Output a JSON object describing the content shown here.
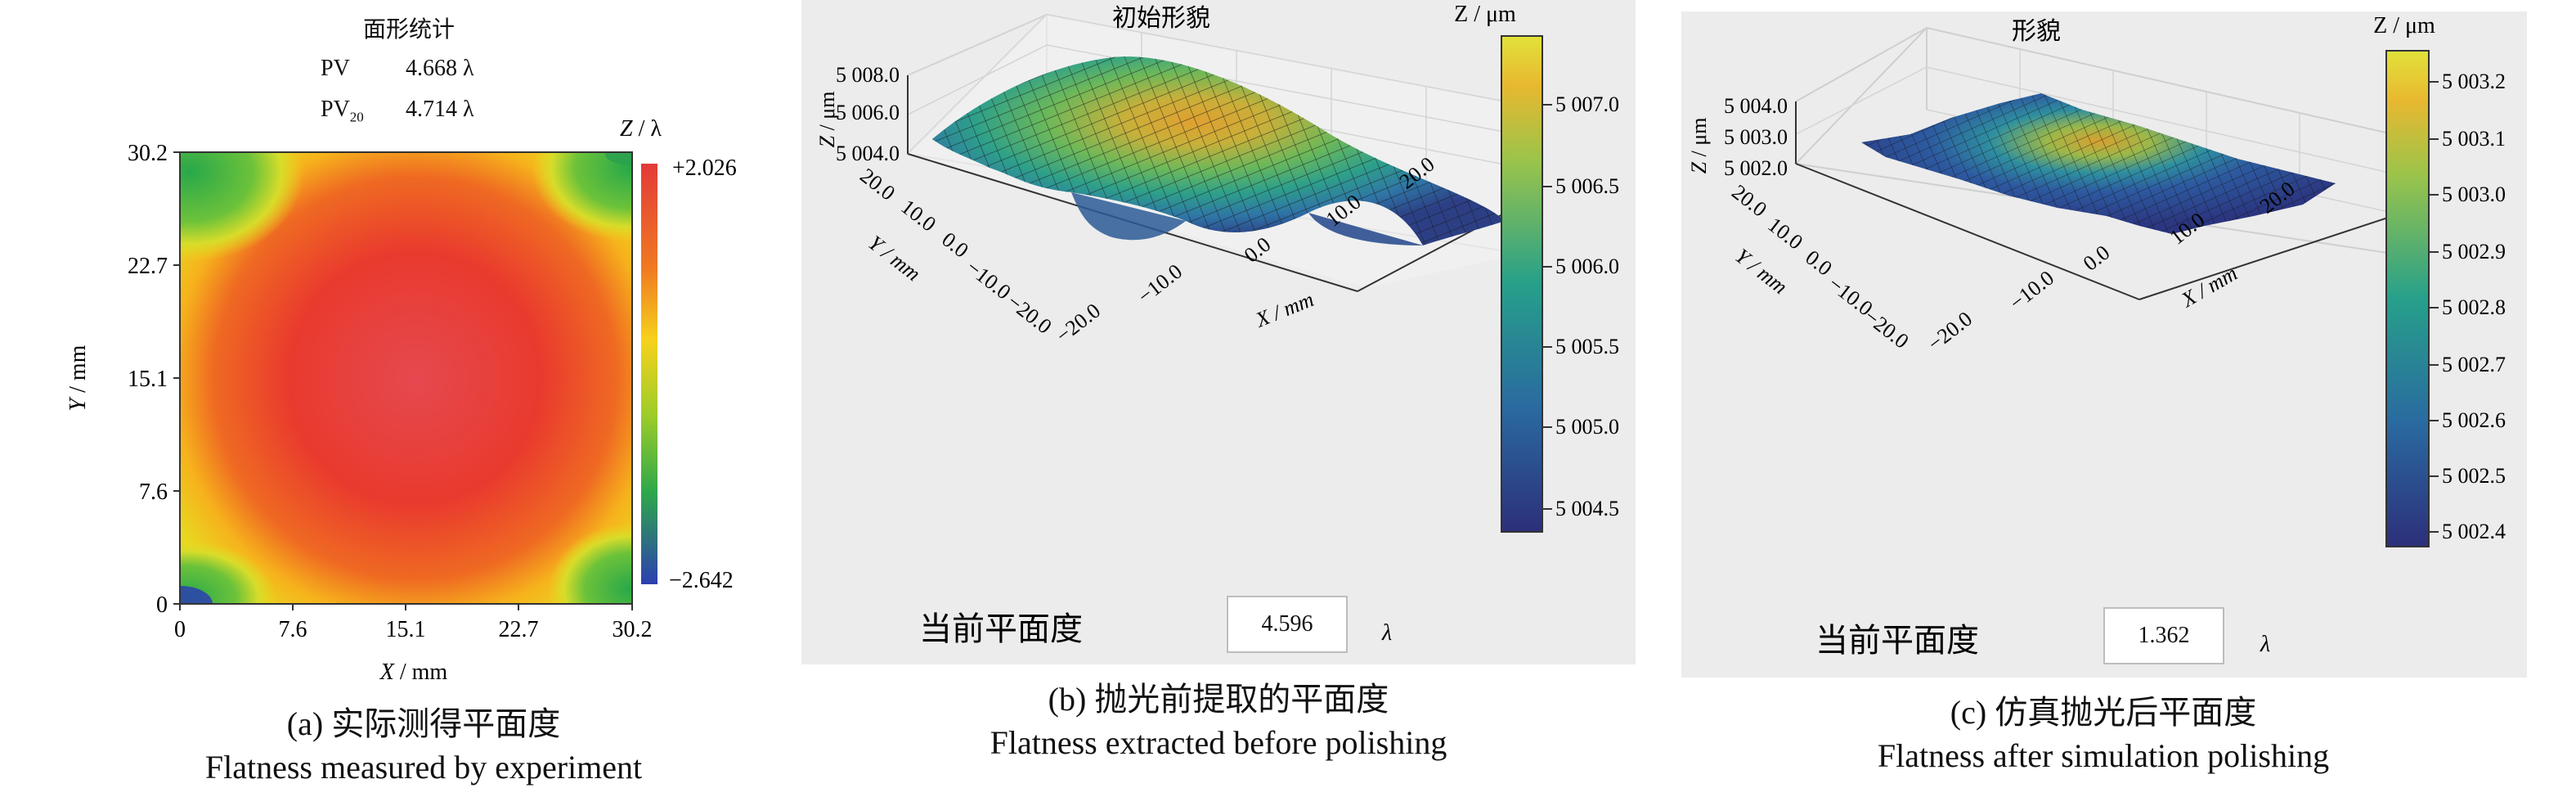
{
  "panel_a": {
    "stats_title": "面形统计",
    "pv_label": "PV",
    "pv_value": "4.668 λ",
    "pv20_label": "PV",
    "pv20_sub": "20",
    "pv20_value": "4.714 λ",
    "xlabel_var": "X",
    "xlabel_unit": " / mm",
    "ylabel_var": "Y",
    "ylabel_unit": " / mm",
    "colorbar_label_var": "Z",
    "colorbar_label_unit": " / λ",
    "colorbar_max": "+2.026",
    "colorbar_min": "−2.642",
    "x_ticks": [
      "0",
      "7.6",
      "15.1",
      "22.7",
      "30.2"
    ],
    "y_ticks": [
      "30.2",
      "22.7",
      "15.1",
      "7.6",
      "0"
    ],
    "caption_cn": "(a) 实际测得平面度",
    "caption_en": "Flatness measured by experiment"
  },
  "panel_b": {
    "title": "初始形貌",
    "z_label_var": "Z",
    "z_label_unit": " / μm",
    "z_ticks": [
      "5 008.0",
      "5 006.0",
      "5 004.0"
    ],
    "y_ticks": [
      "20.0",
      "10.0",
      "0.0",
      "−10.0",
      "−20.0"
    ],
    "x_ticks": [
      "−20.0",
      "−10.0",
      "0.0",
      "10.0",
      "20.0"
    ],
    "x_label": "X / mm",
    "y_label": "Y / mm",
    "colorbar_label": "Z / μm",
    "colorbar_ticks": [
      "5 007.0",
      "5 006.5",
      "5 006.0",
      "5 005.5",
      "5 005.0",
      "5 004.5"
    ],
    "flatness_label": "当前平面度",
    "flatness_value": "4.596",
    "flatness_unit": "λ",
    "caption_cn": "(b) 抛光前提取的平面度",
    "caption_en": "Flatness extracted before polishing"
  },
  "panel_c": {
    "title": "形貌",
    "z_label_var": "Z",
    "z_label_unit": " / μm",
    "z_ticks": [
      "5 004.0",
      "5 003.0",
      "5 002.0"
    ],
    "y_ticks": [
      "20.0",
      "10.0",
      "0.0",
      "−10.0",
      "−20.0"
    ],
    "x_ticks": [
      "−20.0",
      "−10.0",
      "0.0",
      "10.0",
      "20.0"
    ],
    "x_label": "X / mm",
    "y_label": "Y / mm",
    "colorbar_label": "Z / μm",
    "colorbar_ticks": [
      "5 003.2",
      "5 003.1",
      "5 003.0",
      "5 002.9",
      "5 002.8",
      "5 002.7",
      "5 002.6",
      "5 002.5",
      "5 002.4"
    ],
    "flatness_label": "当前平面度",
    "flatness_value": "1.362",
    "flatness_unit": "λ",
    "caption_cn": "(c) 仿真抛光后平面度",
    "caption_en": "Flatness after simulation polishing"
  },
  "colors": {
    "panel_bg": "#ececec",
    "heatmap_center": "#e03c3c",
    "viridis_low": "#2c2f7a",
    "viridis_high": "#e2e23a"
  },
  "chart_data": [
    {
      "type": "heatmap",
      "title": "面形统计",
      "xlabel": "X / mm",
      "ylabel": "Y / mm",
      "xlim": [
        0,
        30.2
      ],
      "ylim": [
        0,
        30.2
      ],
      "colorbar_range": [
        -2.642,
        2.026
      ],
      "colorbar_unit": "λ",
      "stats": {
        "PV": 4.668,
        "PV20": 4.714
      }
    },
    {
      "type": "surface3d",
      "title": "初始形貌",
      "xlabel": "X / mm",
      "ylabel": "Y / mm",
      "zlabel": "Z / μm",
      "xlim": [
        -20,
        20
      ],
      "ylim": [
        -20,
        20
      ],
      "zlim": [
        5004.0,
        5008.0
      ],
      "colorbar_range": [
        5004.3,
        5007.4
      ],
      "current_flatness": 4.596
    },
    {
      "type": "surface3d",
      "title": "形貌",
      "xlabel": "X / mm",
      "ylabel": "Y / mm",
      "zlabel": "Z / μm",
      "xlim": [
        -20,
        20
      ],
      "ylim": [
        -20,
        20
      ],
      "zlim": [
        5002.0,
        5004.0
      ],
      "colorbar_range": [
        5002.35,
        5003.25
      ],
      "current_flatness": 1.362
    }
  ]
}
